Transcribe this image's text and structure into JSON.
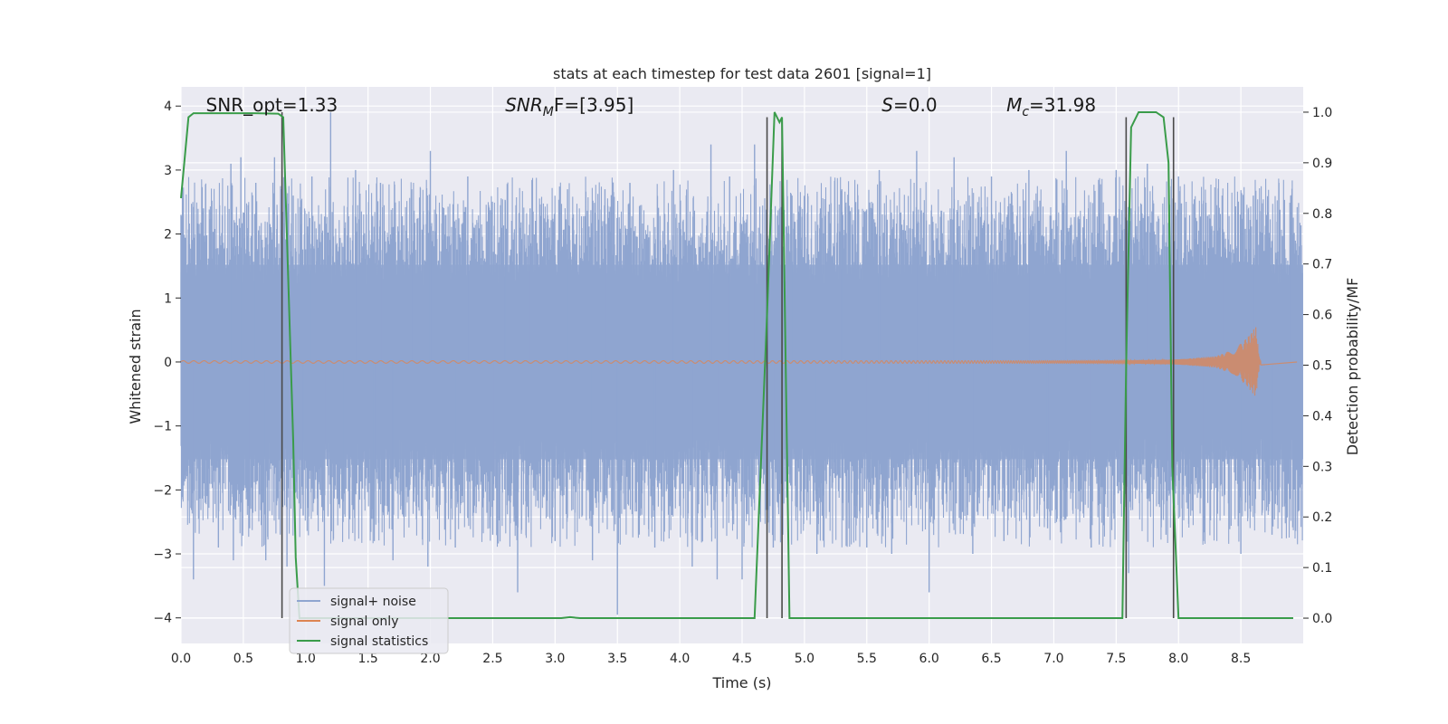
{
  "chart_data": {
    "type": "line",
    "title": "stats at each timestep for test data 2601 [signal=1]",
    "xlabel": "Time (s)",
    "ylabel": "Whitened strain",
    "y2label": "Detection probability/MF",
    "xlim": [
      0.0,
      9.0
    ],
    "ylim": [
      -4.4,
      4.3
    ],
    "y2lim": [
      -0.05,
      1.05
    ],
    "grid": true,
    "xticks": [
      "0.0",
      "0.5",
      "1.0",
      "1.5",
      "2.0",
      "2.5",
      "3.0",
      "3.5",
      "4.0",
      "4.5",
      "5.0",
      "5.5",
      "6.0",
      "6.5",
      "7.0",
      "7.5",
      "8.0",
      "8.5"
    ],
    "yticks": [
      "−4",
      "−3",
      "−2",
      "−1",
      "0",
      "1",
      "2",
      "3",
      "4"
    ],
    "y2ticks": [
      "0.0",
      "0.1",
      "0.2",
      "0.3",
      "0.4",
      "0.5",
      "0.6",
      "0.7",
      "0.8",
      "0.9",
      "1.0"
    ],
    "annotations": [
      {
        "text": "SNR_opt=1.33",
        "x": 0.2,
        "y": 4.0
      },
      {
        "base": "SNR",
        "sub": "M",
        "rest": "F=[3.95]",
        "x": 2.6,
        "y": 4.0
      },
      {
        "base": "S",
        "rest": "=0.0",
        "x": 5.62,
        "y": 4.0
      },
      {
        "base": "M",
        "sub": "c",
        "rest": "=31.98",
        "x": 6.62,
        "y": 4.0
      }
    ],
    "legend": {
      "placement": "lower-left",
      "entries": [
        {
          "label": "signal+ noise",
          "color": "#8fa5d0"
        },
        {
          "label": "signal only",
          "color": "#dd8452"
        },
        {
          "label": "signal statistics",
          "color": "#3a9c4a"
        }
      ]
    },
    "series": [
      {
        "name": "signal+ noise",
        "color": "#8fa5d0",
        "envelope": {
          "typical_band": [
            -1.6,
            1.6
          ],
          "max_peak": 3.9,
          "min_peak": -3.95
        },
        "x": [
          0.0,
          0.1,
          0.18,
          0.3,
          0.4,
          0.42,
          0.48,
          0.55,
          0.6,
          0.68,
          0.75,
          0.85,
          0.9,
          0.98,
          1.05,
          1.15,
          1.2,
          1.3,
          1.4,
          1.55,
          1.6,
          1.7,
          1.85,
          1.98,
          2.0,
          2.2,
          2.3,
          2.5,
          2.6,
          2.7,
          2.8,
          3.0,
          3.1,
          3.3,
          3.4,
          3.5,
          3.6,
          3.8,
          3.95,
          4.1,
          4.25,
          4.3,
          4.4,
          4.5,
          4.6,
          4.75,
          4.9,
          5.1,
          5.3,
          5.5,
          5.6,
          5.7,
          5.9,
          6.0,
          6.2,
          6.35,
          6.5,
          6.6,
          6.8,
          6.95,
          7.1,
          7.3,
          7.5,
          7.6,
          7.75,
          7.9,
          8.0,
          8.2,
          8.35,
          8.5,
          8.6,
          8.75,
          8.9
        ],
        "y": [
          2.3,
          -3.4,
          2.4,
          -2.9,
          3.1,
          -3.1,
          3.2,
          -2.6,
          2.8,
          -3.1,
          3.2,
          -3.2,
          2.6,
          -2.4,
          2.9,
          -3.5,
          3.9,
          -2.5,
          3.0,
          -2.8,
          2.8,
          -3.1,
          2.7,
          -3.2,
          3.3,
          -2.9,
          2.9,
          -2.7,
          2.5,
          -3.6,
          2.4,
          -2.8,
          2.7,
          -3.1,
          2.7,
          -3.95,
          2.8,
          -2.9,
          3.0,
          -3.2,
          3.4,
          -3.4,
          2.9,
          -3.4,
          3.4,
          -2.9,
          2.6,
          -3.0,
          2.7,
          -2.9,
          3.0,
          -3.0,
          3.3,
          -3.6,
          3.2,
          -3.0,
          2.9,
          -2.8,
          3.0,
          -2.6,
          3.3,
          -2.9,
          3.0,
          -3.3,
          3.1,
          -2.7,
          2.9,
          -2.8,
          2.6,
          -3.0,
          2.6,
          -2.7,
          2.6
        ]
      },
      {
        "name": "signal only",
        "color": "#dd8452",
        "x": [
          0.0,
          7.5,
          8.0,
          8.3,
          8.45,
          8.55,
          8.62,
          8.65
        ],
        "amplitude": [
          0.02,
          0.02,
          0.04,
          0.09,
          0.2,
          0.38,
          0.55,
          0.05
        ]
      },
      {
        "name": "signal statistics",
        "color": "#3a9c4a",
        "axis": "right",
        "x": [
          0.0,
          0.06,
          0.1,
          0.2,
          0.3,
          0.6,
          0.78,
          0.82,
          0.9,
          0.92,
          0.95,
          3.05,
          3.12,
          3.2,
          3.3,
          4.6,
          4.7,
          4.76,
          4.8,
          4.82,
          4.88,
          8.92,
          7.55,
          7.58,
          7.62,
          7.68,
          7.82,
          7.88,
          7.92,
          7.95,
          8.0,
          8.9
        ],
        "y": [
          0.83,
          0.99,
          0.998,
          0.998,
          0.998,
          0.998,
          0.997,
          0.99,
          0.35,
          0.12,
          0.0,
          0.0,
          0.002,
          0.0,
          0.0,
          0.0,
          0.6,
          1.0,
          0.98,
          0.99,
          0.0,
          0.0,
          0.0,
          0.5,
          0.97,
          1.0,
          1.0,
          0.99,
          0.9,
          0.3,
          0.0,
          0.0
        ]
      }
    ],
    "vertical_lines": [
      {
        "x": 0.81,
        "y2_range": [
          0.0,
          1.0
        ]
      },
      {
        "x": 4.7,
        "y2_range": [
          0.0,
          0.99
        ]
      },
      {
        "x": 4.82,
        "y2_range": [
          0.0,
          0.99
        ]
      },
      {
        "x": 7.58,
        "y2_range": [
          0.0,
          0.99
        ]
      },
      {
        "x": 7.96,
        "y2_range": [
          0.0,
          0.99
        ]
      }
    ]
  }
}
